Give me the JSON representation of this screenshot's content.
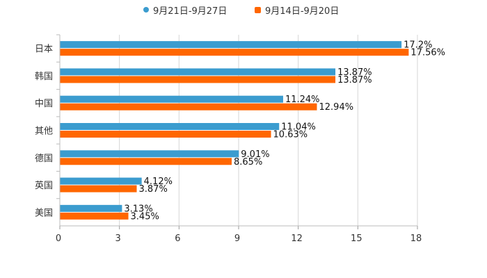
{
  "chart_data": {
    "type": "bar",
    "orientation": "horizontal",
    "title": "",
    "xlabel": "",
    "ylabel": "",
    "categories": [
      "日本",
      "韩国",
      "中国",
      "其他",
      "德国",
      "英国",
      "美国"
    ],
    "series": [
      {
        "name": "9月21日-9月27日",
        "color": "#3b9ccf",
        "values": [
          17.2,
          13.87,
          11.24,
          11.04,
          9.01,
          4.12,
          3.13
        ],
        "labels": [
          "17.2%",
          "13.87%",
          "11.24%",
          "11.04%",
          "9.01%",
          "4.12%",
          "3.13%"
        ]
      },
      {
        "name": "9月14日-9月20日",
        "color": "#ff6600",
        "values": [
          17.56,
          13.87,
          12.94,
          10.63,
          8.65,
          3.87,
          3.45
        ],
        "labels": [
          "17.56%",
          "13.87%",
          "12.94%",
          "10.63%",
          "8.65%",
          "3.87%",
          "3.45%"
        ]
      }
    ],
    "xlim": [
      0,
      18
    ],
    "xticks": [
      "0",
      "3",
      "6",
      "9",
      "12",
      "15",
      "18"
    ],
    "grid": true,
    "legend_position": "top-center"
  }
}
